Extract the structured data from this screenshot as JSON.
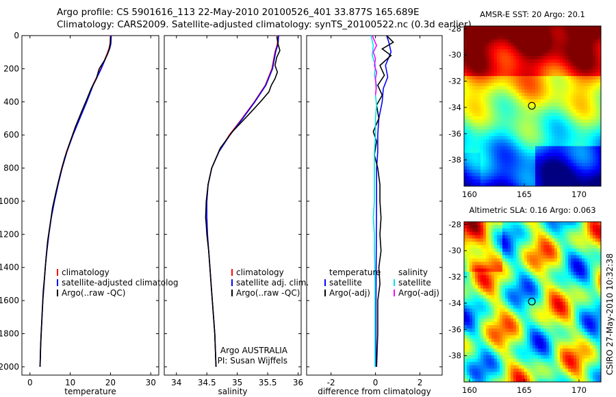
{
  "header": {
    "line1": "Argo profile: CS 5901616_113 22-May-2010 20100526_401 33.877S 165.689E",
    "line2": "Climatology: CARS2009. Satellite-adjusted climatology: synTS_20100522.nc (0.3d earlier)"
  },
  "side_label": "CSIRO 27-May-2010 10:32:38",
  "colors": {
    "climatology": "#ff0000",
    "satellite": "#0000ff",
    "argo": "#000000",
    "salinity_satellite": "#00e5e5",
    "salinity_argo": "#ff00ff"
  },
  "chart_data": [
    {
      "id": "temperature",
      "type": "line",
      "xlabel": "temperature",
      "ylabel": "",
      "xlim": [
        -2,
        32
      ],
      "ylim": [
        2050,
        0
      ],
      "xticks": [
        0,
        10,
        20,
        30
      ],
      "yticks": [
        0,
        200,
        400,
        600,
        800,
        1000,
        1200,
        1400,
        1600,
        1800,
        2000
      ],
      "legend": {
        "position": "lower-right",
        "entries": [
          "climatology",
          "satellite-adjusted climatolog",
          "Argo(..raw -QC)"
        ]
      },
      "series": [
        {
          "name": "climatology",
          "color": "#ff0000",
          "points": [
            [
              20,
              0
            ],
            [
              19.9,
              50
            ],
            [
              19.6,
              80
            ],
            [
              19,
              120
            ],
            [
              17.6,
              200
            ],
            [
              15.6,
              300
            ],
            [
              14,
              400
            ],
            [
              12.3,
              500
            ],
            [
              10.6,
              600
            ],
            [
              9.1,
              700
            ],
            [
              7.9,
              800
            ],
            [
              6.9,
              900
            ],
            [
              6,
              1000
            ],
            [
              5.3,
              1100
            ],
            [
              4.7,
              1200
            ],
            [
              4.2,
              1300
            ],
            [
              3.8,
              1400
            ],
            [
              3.5,
              1500
            ],
            [
              3.2,
              1600
            ],
            [
              3,
              1700
            ],
            [
              2.8,
              1800
            ],
            [
              2.6,
              1900
            ],
            [
              2.5,
              2000
            ]
          ]
        },
        {
          "name": "satellite-adjusted climatolog",
          "color": "#0000ff",
          "points": [
            [
              20.2,
              0
            ],
            [
              20.1,
              50
            ],
            [
              19.8,
              80
            ],
            [
              19.1,
              120
            ],
            [
              17.7,
              200
            ],
            [
              15.7,
              300
            ],
            [
              14.1,
              400
            ],
            [
              12.4,
              500
            ],
            [
              10.7,
              600
            ],
            [
              9.2,
              700
            ],
            [
              8,
              800
            ],
            [
              7,
              900
            ],
            [
              6.1,
              1000
            ],
            [
              5.3,
              1100
            ],
            [
              4.7,
              1200
            ],
            [
              4.2,
              1300
            ],
            [
              3.8,
              1400
            ],
            [
              3.5,
              1500
            ],
            [
              3.2,
              1600
            ],
            [
              3,
              1700
            ],
            [
              2.8,
              1800
            ],
            [
              2.6,
              1900
            ],
            [
              2.5,
              2000
            ]
          ]
        },
        {
          "name": "Argo(..raw -QC)",
          "color": "#000000",
          "points": [
            [
              20,
              5
            ],
            [
              20,
              40
            ],
            [
              19.7,
              80
            ],
            [
              19.3,
              110
            ],
            [
              18.5,
              150
            ],
            [
              17.2,
              200
            ],
            [
              16.5,
              260
            ],
            [
              15.2,
              320
            ],
            [
              14.2,
              380
            ],
            [
              12.8,
              460
            ],
            [
              11.3,
              550
            ],
            [
              10,
              640
            ],
            [
              8.6,
              740
            ],
            [
              7.5,
              840
            ],
            [
              6.5,
              940
            ],
            [
              5.6,
              1040
            ],
            [
              5,
              1140
            ],
            [
              4.4,
              1240
            ],
            [
              4,
              1340
            ],
            [
              3.7,
              1440
            ],
            [
              3.3,
              1540
            ],
            [
              3.1,
              1640
            ],
            [
              2.9,
              1740
            ],
            [
              2.7,
              1840
            ],
            [
              2.6,
              1940
            ],
            [
              2.5,
              2000
            ]
          ]
        }
      ]
    },
    {
      "id": "salinity",
      "type": "line",
      "xlabel": "salinity",
      "ylabel": "",
      "xlim": [
        33.8,
        36.05
      ],
      "ylim": [
        2050,
        0
      ],
      "xticks": [
        34,
        34.5,
        35,
        35.5,
        36
      ],
      "yticks": [
        0,
        200,
        400,
        600,
        800,
        1000,
        1200,
        1400,
        1600,
        1800,
        2000
      ],
      "legend": {
        "position": "lower-right",
        "entries": [
          "climatology",
          "satellite adj. clim.",
          "Argo(..raw -QC)"
        ]
      },
      "annotation": [
        "Argo AUSTRALIA",
        "PI: Susan Wijffels"
      ],
      "series": [
        {
          "name": "climatology",
          "color": "#ff0000",
          "points": [
            [
              35.67,
              0
            ],
            [
              35.66,
              50
            ],
            [
              35.62,
              100
            ],
            [
              35.57,
              200
            ],
            [
              35.46,
              300
            ],
            [
              35.28,
              400
            ],
            [
              35.08,
              500
            ],
            [
              34.87,
              600
            ],
            [
              34.7,
              700
            ],
            [
              34.58,
              800
            ],
            [
              34.52,
              900
            ],
            [
              34.5,
              1000
            ],
            [
              34.5,
              1100
            ],
            [
              34.51,
              1200
            ],
            [
              34.53,
              1300
            ],
            [
              34.55,
              1400
            ],
            [
              34.57,
              1500
            ],
            [
              34.59,
              1600
            ],
            [
              34.61,
              1700
            ],
            [
              34.63,
              1800
            ],
            [
              34.64,
              1900
            ],
            [
              34.65,
              2000
            ]
          ]
        },
        {
          "name": "satellite adj. clim.",
          "color": "#0000ff",
          "points": [
            [
              35.68,
              0
            ],
            [
              35.67,
              50
            ],
            [
              35.63,
              100
            ],
            [
              35.58,
              200
            ],
            [
              35.47,
              300
            ],
            [
              35.29,
              400
            ],
            [
              35.09,
              500
            ],
            [
              34.88,
              600
            ],
            [
              34.7,
              700
            ],
            [
              34.58,
              800
            ],
            [
              34.52,
              900
            ],
            [
              34.5,
              1000
            ],
            [
              34.5,
              1100
            ],
            [
              34.51,
              1200
            ],
            [
              34.53,
              1300
            ],
            [
              34.55,
              1400
            ],
            [
              34.57,
              1500
            ],
            [
              34.59,
              1600
            ],
            [
              34.61,
              1700
            ],
            [
              34.63,
              1800
            ],
            [
              34.64,
              1900
            ],
            [
              34.65,
              2000
            ]
          ]
        },
        {
          "name": "Argo(..raw -QC)",
          "color": "#000000",
          "points": [
            [
              35.65,
              5
            ],
            [
              35.67,
              50
            ],
            [
              35.7,
              90
            ],
            [
              35.65,
              130
            ],
            [
              35.62,
              180
            ],
            [
              35.66,
              220
            ],
            [
              35.62,
              260
            ],
            [
              35.56,
              300
            ],
            [
              35.52,
              340
            ],
            [
              35.38,
              400
            ],
            [
              35.18,
              480
            ],
            [
              34.92,
              580
            ],
            [
              34.72,
              680
            ],
            [
              34.58,
              800
            ],
            [
              34.52,
              900
            ],
            [
              34.49,
              1000
            ],
            [
              34.48,
              1100
            ],
            [
              34.49,
              1140
            ],
            [
              34.5,
              1200
            ],
            [
              34.53,
              1300
            ],
            [
              34.55,
              1400
            ],
            [
              34.57,
              1500
            ],
            [
              34.59,
              1600
            ],
            [
              34.61,
              1700
            ],
            [
              34.63,
              1800
            ],
            [
              34.64,
              1900
            ],
            [
              34.65,
              2000
            ]
          ]
        }
      ]
    },
    {
      "id": "difference",
      "type": "line",
      "xlabel": "difference from climatology",
      "ylabel": "",
      "xlim": [
        -3.1,
        3.0
      ],
      "ylim": [
        2050,
        0
      ],
      "xticks": [
        -2,
        0,
        2
      ],
      "yticks": [
        0,
        200,
        400,
        600,
        800,
        1000,
        1200,
        1400,
        1600,
        1800,
        2000
      ],
      "legend": {
        "position": "lower-right",
        "temperature_title": "temperature",
        "salinity_title": "salinity",
        "temperature_entries": [
          "satellite",
          "Argo(-adj)"
        ],
        "salinity_entries": [
          "satellite",
          "Argo(-adj)"
        ]
      },
      "series": [
        {
          "name": "temperature satellite",
          "color": "#0000ff",
          "points": [
            [
              0.5,
              0
            ],
            [
              0.6,
              40
            ],
            [
              0.7,
              100
            ],
            [
              0.45,
              180
            ],
            [
              0.55,
              250
            ],
            [
              0.35,
              320
            ],
            [
              0.3,
              400
            ],
            [
              0.15,
              500
            ],
            [
              0.1,
              600
            ],
            [
              0.1,
              700
            ],
            [
              0.05,
              800
            ],
            [
              0.05,
              1000
            ],
            [
              0.04,
              1200
            ],
            [
              0.03,
              1400
            ],
            [
              0.02,
              1600
            ],
            [
              0.02,
              1800
            ],
            [
              0.02,
              2000
            ]
          ]
        },
        {
          "name": "temperature Argo(-adj)",
          "color": "#000000",
          "points": [
            [
              0.5,
              0
            ],
            [
              0.8,
              40
            ],
            [
              0.3,
              80
            ],
            [
              0.7,
              120
            ],
            [
              0.2,
              180
            ],
            [
              0.4,
              240
            ],
            [
              0.1,
              300
            ],
            [
              0.3,
              360
            ],
            [
              0.05,
              420
            ],
            [
              0.15,
              500
            ],
            [
              -0.1,
              580
            ],
            [
              0.05,
              640
            ],
            [
              -0.05,
              720
            ],
            [
              0.1,
              800
            ],
            [
              0.2,
              900
            ],
            [
              0.2,
              1000
            ],
            [
              0.25,
              1100
            ],
            [
              0.2,
              1200
            ],
            [
              0.25,
              1300
            ],
            [
              0.15,
              1400
            ],
            [
              0.2,
              1500
            ],
            [
              0.1,
              1600
            ],
            [
              0.1,
              1800
            ],
            [
              0.05,
              2000
            ]
          ]
        },
        {
          "name": "salinity satellite",
          "color": "#00e5e5",
          "points": [
            [
              -0.2,
              0
            ],
            [
              -0.1,
              60
            ],
            [
              -0.15,
              120
            ],
            [
              0,
              180
            ],
            [
              -0.05,
              240
            ],
            [
              0.05,
              300
            ],
            [
              0,
              360
            ],
            [
              0.05,
              420
            ],
            [
              0,
              500
            ],
            [
              0,
              600
            ],
            [
              -0.05,
              700
            ],
            [
              -0.05,
              800
            ],
            [
              -0.05,
              900
            ],
            [
              -0.05,
              1000
            ],
            [
              -0.1,
              1100
            ],
            [
              -0.05,
              1200
            ],
            [
              -0.05,
              1300
            ],
            [
              -0.03,
              1400
            ],
            [
              -0.02,
              1500
            ],
            [
              -0.02,
              1600
            ],
            [
              -0.02,
              1800
            ],
            [
              -0.02,
              2000
            ]
          ]
        },
        {
          "name": "salinity Argo(-adj)",
          "color": "#ff00ff",
          "points": [
            [
              -0.15,
              0
            ],
            [
              0.05,
              60
            ],
            [
              -0.1,
              100
            ],
            [
              0,
              140
            ],
            [
              -0.05,
              180
            ],
            [
              0.05,
              220
            ],
            [
              0,
              260
            ],
            [
              0.03,
              320
            ],
            [
              0,
              360
            ]
          ]
        }
      ]
    },
    {
      "id": "sst_map",
      "type": "heatmap",
      "title": "AMSR-E SST: 20 Argo: 20.1",
      "xlim": [
        159.5,
        172
      ],
      "ylim": [
        -40,
        -27.8
      ],
      "xticks": [
        160,
        165,
        170
      ],
      "yticks": [
        -28,
        -30,
        -32,
        -34,
        -36,
        -38
      ],
      "marker": {
        "lon": 165.689,
        "lat": -33.877
      }
    },
    {
      "id": "sla_map",
      "type": "heatmap",
      "title": "Altimetric SLA: 0.16 Argo: 0.063",
      "xlim": [
        159.5,
        172
      ],
      "ylim": [
        -40,
        -27.8
      ],
      "xticks": [
        160,
        165,
        170
      ],
      "yticks": [
        -28,
        -30,
        -32,
        -34,
        -36,
        -38
      ],
      "marker": {
        "lon": 165.689,
        "lat": -33.877
      }
    }
  ]
}
